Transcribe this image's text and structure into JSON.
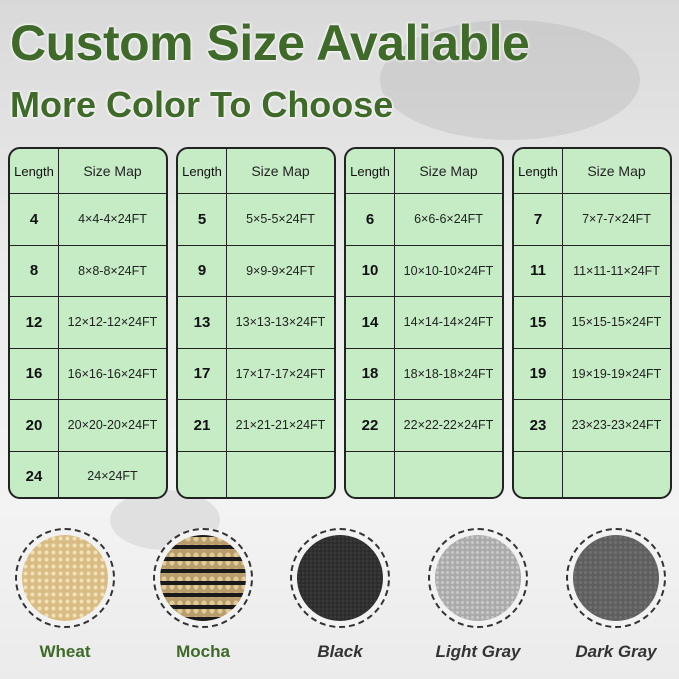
{
  "title": "Custom Size Avaliable",
  "subtitle": "More Color To Choose",
  "header": {
    "length": "Length",
    "size_map": "Size Map"
  },
  "tables": [
    {
      "rows": [
        [
          "4",
          "4×4-4×24FT"
        ],
        [
          "8",
          "8×8-8×24FT"
        ],
        [
          "12",
          "12×12-12×24FT"
        ],
        [
          "16",
          "16×16-16×24FT"
        ],
        [
          "20",
          "20×20-20×24FT"
        ],
        [
          "24",
          "24×24FT"
        ]
      ]
    },
    {
      "rows": [
        [
          "5",
          "5×5-5×24FT"
        ],
        [
          "9",
          "9×9-9×24FT"
        ],
        [
          "13",
          "13×13-13×24FT"
        ],
        [
          "17",
          "17×17-17×24FT"
        ],
        [
          "21",
          "21×21-21×24FT"
        ],
        [
          "",
          ""
        ]
      ]
    },
    {
      "rows": [
        [
          "6",
          "6×6-6×24FT"
        ],
        [
          "10",
          "10×10-10×24FT"
        ],
        [
          "14",
          "14×14-14×24FT"
        ],
        [
          "18",
          "18×18-18×24FT"
        ],
        [
          "22",
          "22×22-22×24FT"
        ],
        [
          "",
          ""
        ]
      ]
    },
    {
      "rows": [
        [
          "7",
          "7×7-7×24FT"
        ],
        [
          "11",
          "11×11-11×24FT"
        ],
        [
          "15",
          "15×15-15×24FT"
        ],
        [
          "19",
          "19×19-19×24FT"
        ],
        [
          "23",
          "23×23-23×24FT"
        ],
        [
          "",
          ""
        ]
      ]
    }
  ],
  "colors": [
    {
      "name": "Wheat",
      "hex": "#d9bc84"
    },
    {
      "name": "Mocha",
      "hex": "#b89c6c"
    },
    {
      "name": "Black",
      "hex": "#2a2a2a"
    },
    {
      "name": "Light Gray",
      "hex": "#a9a9a9"
    },
    {
      "name": "Dark Gray",
      "hex": "#5e5e5e"
    }
  ]
}
